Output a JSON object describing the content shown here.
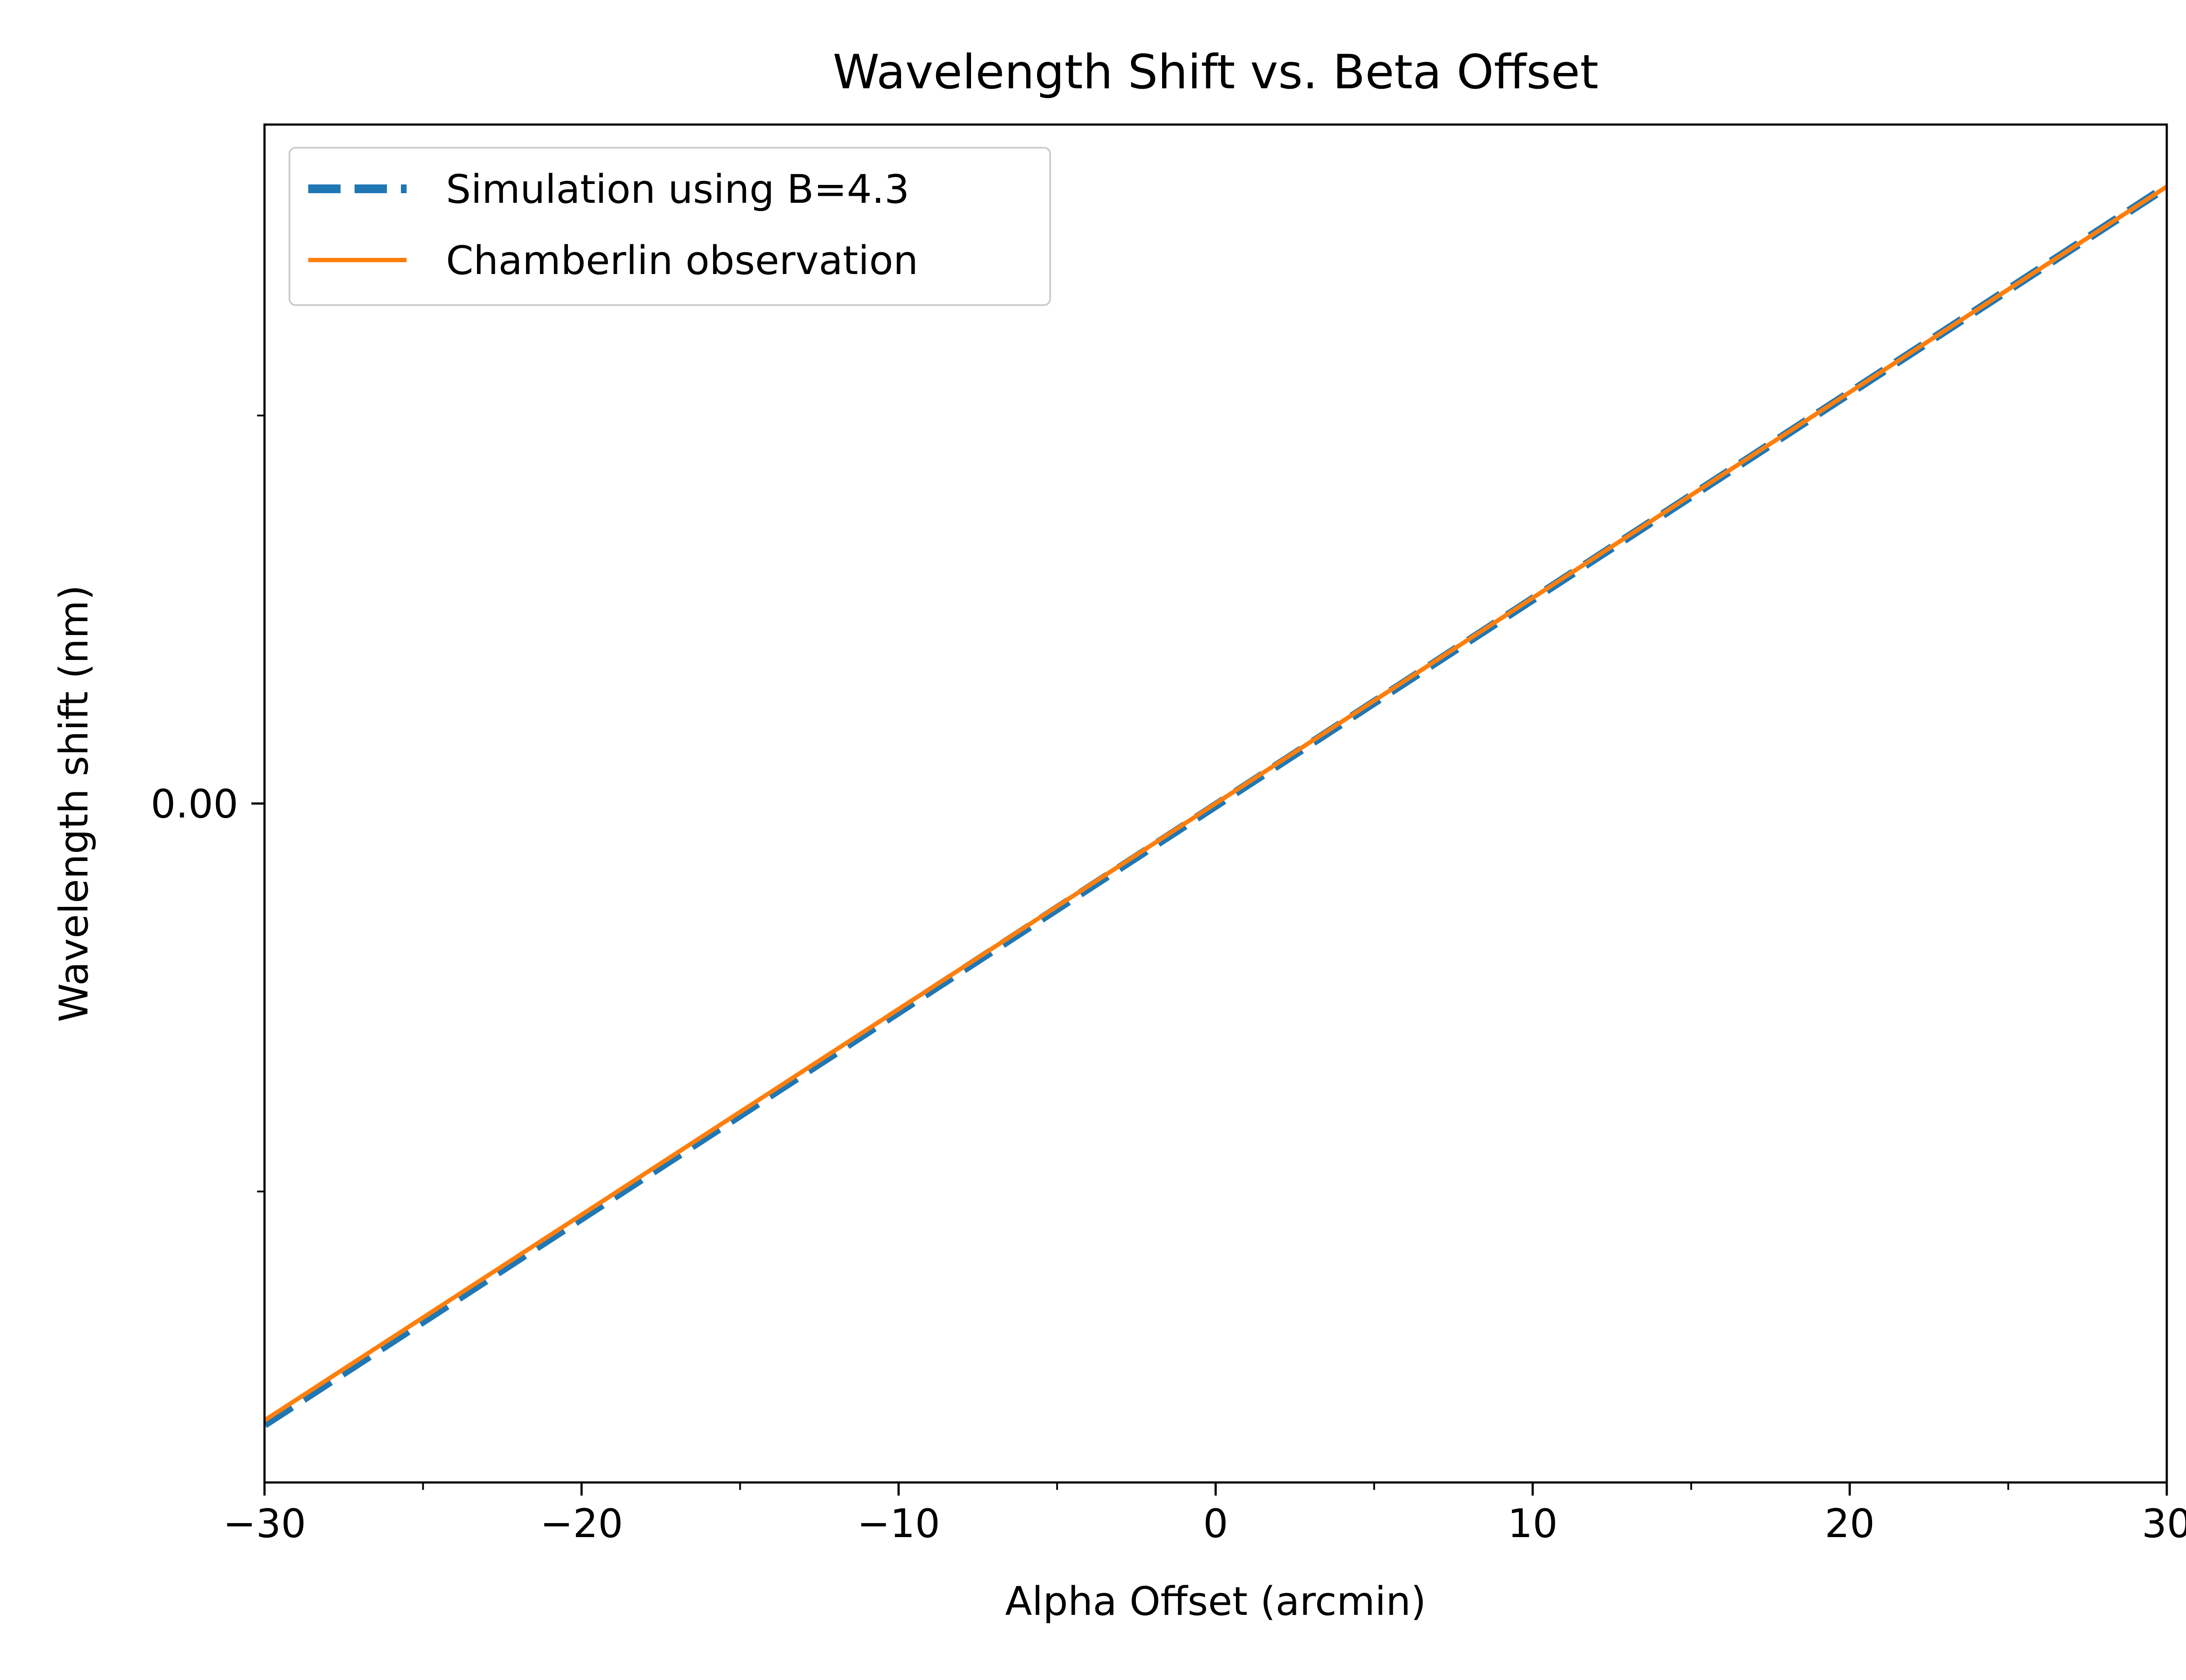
{
  "chart_data": {
    "type": "line",
    "title": "Wavelength Shift vs. Beta Offset",
    "xlabel": "Alpha Offset (arcmin)",
    "ylabel": "Wavelength shift (nm)",
    "xlim": [
      -30,
      30
    ],
    "ylim": [
      -0.175,
      0.175
    ],
    "x_ticks": [
      -30,
      -20,
      -10,
      0,
      10,
      20,
      30
    ],
    "x_tick_labels": [
      "−30",
      "−20",
      "−10",
      "0",
      "10",
      "20",
      "30"
    ],
    "x_minor_ticks": [
      -25,
      -15,
      -5,
      5,
      15,
      25
    ],
    "y_ticks": [
      0
    ],
    "y_tick_labels": [
      "0.00"
    ],
    "y_minor_ticks": [
      -0.1,
      0.1
    ],
    "grid": false,
    "legend_position": "top-left",
    "series": [
      {
        "name": "Simulation using B=4.3",
        "style": "dashed",
        "color": "#1f77b4",
        "x": [
          -30,
          30
        ],
        "y": [
          -0.16,
          0.159
        ]
      },
      {
        "name": "Chamberlin observation",
        "style": "solid",
        "color": "#ff7f0e",
        "x": [
          -30,
          30
        ],
        "y": [
          -0.159,
          0.159
        ]
      }
    ]
  }
}
